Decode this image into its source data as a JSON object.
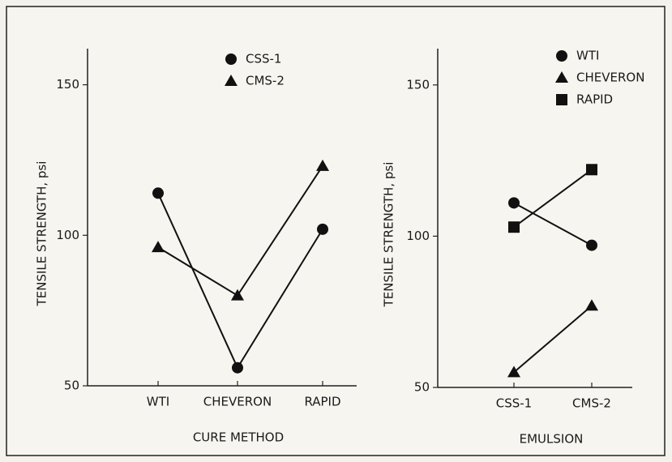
{
  "chart_data": [
    {
      "type": "line",
      "x_label": "CURE METHOD",
      "y_label": "TENSILE STRENGTH, psi",
      "categories": [
        "WTI",
        "CHEVERON",
        "RAPID"
      ],
      "series": [
        {
          "name": "CSS-1",
          "marker": "circle",
          "color": "#111111",
          "values": [
            114,
            56,
            102
          ]
        },
        {
          "name": "CMS-2",
          "marker": "triangle",
          "color": "#111111",
          "values": [
            96,
            80,
            123
          ]
        }
      ],
      "ylim": [
        50,
        162
      ],
      "yticks": [
        50,
        100,
        150
      ]
    },
    {
      "type": "line",
      "x_label": "EMULSION",
      "y_label": "TENSILE STRENGTH, psi",
      "categories": [
        "CSS-1",
        "CMS-2"
      ],
      "series": [
        {
          "name": "WTI",
          "marker": "circle",
          "color": "#111111",
          "values": [
            111,
            97
          ]
        },
        {
          "name": "CHEVERON",
          "marker": "triangle",
          "color": "#111111",
          "values": [
            55,
            77
          ]
        },
        {
          "name": "RAPID",
          "marker": "square",
          "color": "#111111",
          "values": [
            103,
            122
          ]
        }
      ],
      "ylim": [
        50,
        162
      ],
      "yticks": [
        50,
        100,
        150
      ]
    }
  ]
}
